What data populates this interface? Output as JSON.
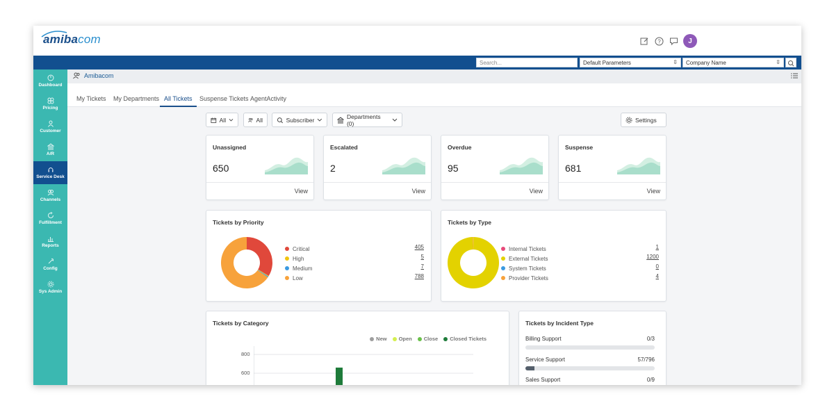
{
  "app": {
    "logo_text_bold": "amiba",
    "logo_text_light": "com",
    "avatar_initial": "J"
  },
  "header": {
    "search_placeholder": "Search...",
    "params_select": "Default Parameters",
    "company_select": "Company Name"
  },
  "sidebar": {
    "items": [
      {
        "label": "Dashboard",
        "icon": "dashboard-icon"
      },
      {
        "label": "Pricing",
        "icon": "pricing-icon"
      },
      {
        "label": "Customer",
        "icon": "customer-icon"
      },
      {
        "label": "A/R",
        "icon": "bank-icon"
      },
      {
        "label": "Service Desk",
        "icon": "headset-icon"
      },
      {
        "label": "Channels",
        "icon": "channels-icon"
      },
      {
        "label": "Fulfillment",
        "icon": "fulfillment-icon"
      },
      {
        "label": "Reports",
        "icon": "reports-icon"
      },
      {
        "label": "Config",
        "icon": "config-icon"
      },
      {
        "label": "Sys Admin",
        "icon": "gear-icon"
      }
    ]
  },
  "subheader": {
    "org_name": "Amibacom"
  },
  "tabs": [
    "My Tickets",
    "My Departments",
    "All Tickets",
    "Suspense Tickets",
    "AgentActivity"
  ],
  "filters": {
    "date": "All",
    "agents": "All",
    "subscriber": "Subscriber",
    "departments": "Departments (0)",
    "settings": "Settings"
  },
  "stats": [
    {
      "title": "Unassigned",
      "value": "650",
      "view": "View"
    },
    {
      "title": "Escalated",
      "value": "2",
      "view": "View"
    },
    {
      "title": "Overdue",
      "value": "95",
      "view": "View"
    },
    {
      "title": "Suspense",
      "value": "681",
      "view": "View"
    }
  ],
  "priority": {
    "title": "Tickets by Priority",
    "items": [
      {
        "label": "Critical",
        "value": "405",
        "count": 405,
        "color": "#e0483b"
      },
      {
        "label": "High",
        "value": "5",
        "count": 5,
        "color": "#f1c40f"
      },
      {
        "label": "Medium",
        "value": "7",
        "count": 7,
        "color": "#3b9ae1"
      },
      {
        "label": "Low",
        "value": "788",
        "count": 788,
        "color": "#f7a23b"
      }
    ]
  },
  "types": {
    "title": "Tickets by Type",
    "items": [
      {
        "label": "Internal Tickets",
        "value": "1",
        "count": 1,
        "color": "#e84a7a"
      },
      {
        "label": "External Tickets",
        "value": "1200",
        "count": 1200,
        "color": "#e3d200"
      },
      {
        "label": "System Tickets",
        "value": "0",
        "count": 0,
        "color": "#3b9ae1"
      },
      {
        "label": "Provider Tickets",
        "value": "4",
        "count": 4,
        "color": "#f7a23b"
      }
    ]
  },
  "category": {
    "title": "Tickets by Category",
    "legend": [
      {
        "label": "New",
        "color": "#9e9e9e"
      },
      {
        "label": "Open",
        "color": "#d4ef4f"
      },
      {
        "label": "Close",
        "color": "#6ac14a"
      },
      {
        "label": "Closed Tickets",
        "color": "#1e7b3a"
      }
    ],
    "y_ticks": [
      "800",
      "600"
    ]
  },
  "chart_data": {
    "type": "bar",
    "title": "Tickets by Category",
    "series": [
      {
        "name": "New",
        "values": [
          0
        ]
      },
      {
        "name": "Open",
        "values": [
          0
        ]
      },
      {
        "name": "Close",
        "values": [
          0
        ]
      },
      {
        "name": "Closed Tickets",
        "values": [
          660
        ]
      }
    ],
    "y_ticks": [
      800,
      600
    ],
    "ylim": [
      0,
      800
    ]
  },
  "incident": {
    "title": "Tickets by Incident Type",
    "items": [
      {
        "label": "Billing Support",
        "value": "0/3",
        "fraction": 0
      },
      {
        "label": "Service Support",
        "value": "57/796",
        "fraction": 0.0716
      },
      {
        "label": "Sales Support",
        "value": "0/9",
        "fraction": 0
      }
    ]
  }
}
